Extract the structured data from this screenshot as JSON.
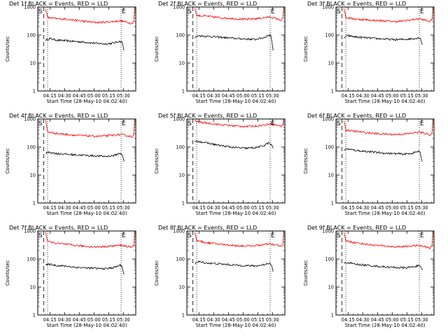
{
  "figure": {
    "xlabel": "Start Time (28-May-10 04:02:40)",
    "ylabel": "Counts/sec",
    "x_ticks": [
      "04:15",
      "04:30",
      "04:45",
      "05:00",
      "05:15",
      "05:30"
    ],
    "y_ticks": [
      "1",
      "10",
      "100",
      "1000"
    ],
    "colors": {
      "events": "#000000",
      "lld": "#ff0000",
      "axes": "#000000"
    }
  },
  "chart_data": [
    {
      "type": "line",
      "title": "Det 1f BLACK = Events, RED = LLD",
      "start_marker": "S",
      "end_marker": "E",
      "xlim_minutes": [
        0,
        100
      ],
      "x_unit": "minutes after 04:02:40",
      "yscale": "log",
      "ylim": [
        1,
        1000
      ],
      "dashed_line_x": 6,
      "dotted_lines_x": [
        10,
        85
      ],
      "series": [
        {
          "name": "Events",
          "color": "#000000",
          "x": [
            8,
            12,
            20,
            30,
            40,
            50,
            60,
            70,
            78,
            83,
            86,
            88
          ],
          "values": [
            65,
            75,
            65,
            62,
            58,
            55,
            50,
            48,
            52,
            60,
            55,
            28
          ]
        },
        {
          "name": "LLD",
          "color": "#ff0000",
          "x": [
            8,
            10,
            20,
            30,
            40,
            50,
            60,
            70,
            80,
            85,
            92,
            96,
            98,
            99
          ],
          "values": [
            900,
            420,
            380,
            370,
            330,
            300,
            280,
            290,
            310,
            320,
            280,
            260,
            320,
            1000
          ]
        }
      ]
    },
    {
      "type": "line",
      "title": "Det 2f BLACK = Events, RED = LLD",
      "start_marker": "S",
      "end_marker": "E",
      "xlim_minutes": [
        0,
        100
      ],
      "x_unit": "minutes after 04:02:40",
      "yscale": "log",
      "ylim": [
        1,
        1000
      ],
      "dashed_line_x": 6,
      "dotted_lines_x": [
        10,
        85
      ],
      "series": [
        {
          "name": "Events",
          "color": "#000000",
          "x": [
            8,
            12,
            20,
            30,
            40,
            50,
            60,
            70,
            78,
            84,
            86,
            88
          ],
          "values": [
            80,
            95,
            90,
            85,
            80,
            75,
            72,
            70,
            80,
            100,
            90,
            28
          ]
        },
        {
          "name": "LLD",
          "color": "#ff0000",
          "x": [
            8,
            10,
            20,
            30,
            40,
            50,
            60,
            70,
            80,
            85,
            92,
            96,
            98,
            99
          ],
          "values": [
            900,
            500,
            470,
            430,
            400,
            380,
            360,
            380,
            420,
            440,
            380,
            330,
            400,
            1000
          ]
        }
      ]
    },
    {
      "type": "line",
      "title": "Det 3f BLACK = Events, RED = LLD",
      "start_marker": "S",
      "end_marker": "E",
      "xlim_minutes": [
        0,
        100
      ],
      "x_unit": "minutes after 04:02:40",
      "yscale": "log",
      "ylim": [
        1,
        1000
      ],
      "dashed_line_x": 6,
      "dotted_lines_x": [
        10,
        85
      ],
      "series": [
        {
          "name": "Events",
          "color": "#000000",
          "x": [
            8,
            12,
            20,
            30,
            40,
            50,
            60,
            70,
            80,
            86,
            88
          ],
          "values": [
            80,
            95,
            85,
            80,
            75,
            72,
            68,
            70,
            75,
            80,
            45
          ]
        },
        {
          "name": "LLD",
          "color": "#ff0000",
          "x": [
            8,
            10,
            20,
            30,
            40,
            50,
            60,
            70,
            80,
            85,
            92,
            96,
            98,
            99
          ],
          "values": [
            900,
            420,
            370,
            350,
            330,
            320,
            300,
            320,
            360,
            380,
            330,
            300,
            360,
            1000
          ]
        }
      ]
    },
    {
      "type": "line",
      "title": "Det 4f BLACK = Events, RED = LLD",
      "start_marker": "S",
      "end_marker": "E",
      "xlim_minutes": [
        0,
        100
      ],
      "x_unit": "minutes after 04:02:40",
      "yscale": "log",
      "ylim": [
        1,
        1000
      ],
      "dashed_line_x": 6,
      "dotted_lines_x": [
        10,
        85
      ],
      "series": [
        {
          "name": "Events",
          "color": "#000000",
          "x": [
            8,
            12,
            20,
            30,
            40,
            50,
            60,
            70,
            78,
            84,
            86,
            88
          ],
          "values": [
            60,
            65,
            58,
            55,
            52,
            50,
            48,
            46,
            50,
            60,
            55,
            30
          ]
        },
        {
          "name": "LLD",
          "color": "#ff0000",
          "x": [
            8,
            10,
            20,
            30,
            40,
            50,
            60,
            70,
            80,
            85,
            92,
            96,
            98,
            99
          ],
          "values": [
            900,
            350,
            300,
            280,
            260,
            250,
            240,
            250,
            270,
            280,
            250,
            230,
            290,
            1000
          ]
        }
      ]
    },
    {
      "type": "line",
      "title": "Det 5f BLACK = Events, RED = LLD",
      "start_marker": "S",
      "end_marker": "E",
      "xlim_minutes": [
        0,
        100
      ],
      "x_unit": "minutes after 04:02:40",
      "yscale": "log",
      "ylim": [
        1,
        1000
      ],
      "dashed_line_x": 6,
      "dotted_lines_x": [
        10,
        85
      ],
      "series": [
        {
          "name": "Events",
          "color": "#000000",
          "x": [
            8,
            12,
            20,
            30,
            40,
            50,
            60,
            70,
            78,
            83,
            86,
            88
          ],
          "values": [
            150,
            160,
            140,
            120,
            105,
            95,
            90,
            95,
            110,
            140,
            120,
            90
          ]
        },
        {
          "name": "LLD",
          "color": "#ff0000",
          "x": [
            8,
            10,
            20,
            30,
            40,
            50,
            60,
            70,
            80,
            85,
            92,
            96,
            98,
            99
          ],
          "values": [
            900,
            800,
            720,
            650,
            600,
            560,
            540,
            560,
            620,
            680,
            600,
            550,
            650,
            1000
          ]
        }
      ]
    },
    {
      "type": "line",
      "title": "Det 6f BLACK = Events, RED = LLD",
      "start_marker": "S",
      "end_marker": "E",
      "xlim_minutes": [
        0,
        100
      ],
      "x_unit": "minutes after 04:02:40",
      "yscale": "log",
      "ylim": [
        1,
        1000
      ],
      "dashed_line_x": 6,
      "dotted_lines_x": [
        10,
        85
      ],
      "series": [
        {
          "name": "Events",
          "color": "#000000",
          "x": [
            8,
            12,
            20,
            30,
            40,
            50,
            60,
            70,
            78,
            84,
            86,
            88
          ],
          "values": [
            80,
            85,
            75,
            70,
            65,
            60,
            58,
            56,
            60,
            70,
            60,
            30
          ]
        },
        {
          "name": "LLD",
          "color": "#ff0000",
          "x": [
            8,
            10,
            20,
            30,
            40,
            50,
            60,
            70,
            80,
            85,
            92,
            96,
            98,
            99
          ],
          "values": [
            900,
            400,
            360,
            330,
            300,
            290,
            280,
            290,
            320,
            340,
            300,
            270,
            330,
            1000
          ]
        }
      ]
    },
    {
      "type": "line",
      "title": "Det 7f BLACK = Events, RED = LLD",
      "start_marker": "S",
      "end_marker": "E",
      "xlim_minutes": [
        0,
        100
      ],
      "x_unit": "minutes after 04:02:40",
      "yscale": "log",
      "ylim": [
        1,
        1000
      ],
      "dashed_line_x": 6,
      "dotted_lines_x": [
        10,
        85
      ],
      "series": [
        {
          "name": "Events",
          "color": "#000000",
          "x": [
            8,
            12,
            20,
            30,
            40,
            50,
            60,
            70,
            78,
            84,
            86,
            88
          ],
          "values": [
            60,
            65,
            58,
            55,
            50,
            48,
            46,
            45,
            50,
            60,
            55,
            28
          ]
        },
        {
          "name": "LLD",
          "color": "#ff0000",
          "x": [
            8,
            10,
            20,
            30,
            40,
            50,
            60,
            70,
            80,
            85,
            92,
            96,
            98,
            99
          ],
          "values": [
            900,
            420,
            360,
            330,
            300,
            280,
            270,
            280,
            300,
            310,
            280,
            260,
            310,
            1000
          ]
        }
      ]
    },
    {
      "type": "line",
      "title": "Det 8f BLACK = Events, RED = LLD",
      "start_marker": "S",
      "end_marker": "E",
      "xlim_minutes": [
        0,
        100
      ],
      "x_unit": "minutes after 04:02:40",
      "yscale": "log",
      "ylim": [
        1,
        1000
      ],
      "dashed_line_x": 6,
      "dotted_lines_x": [
        10,
        85
      ],
      "series": [
        {
          "name": "Events",
          "color": "#000000",
          "x": [
            8,
            12,
            20,
            30,
            40,
            50,
            60,
            70,
            78,
            84,
            86,
            88
          ],
          "values": [
            70,
            80,
            72,
            68,
            64,
            60,
            58,
            56,
            62,
            72,
            65,
            35
          ]
        },
        {
          "name": "LLD",
          "color": "#ff0000",
          "x": [
            8,
            10,
            20,
            30,
            40,
            50,
            60,
            70,
            80,
            85,
            92,
            96,
            98,
            99
          ],
          "values": [
            900,
            450,
            380,
            350,
            320,
            300,
            290,
            300,
            330,
            340,
            310,
            280,
            340,
            1000
          ]
        }
      ]
    },
    {
      "type": "line",
      "title": "Det 9f BLACK = Events, RED = LLD",
      "start_marker": "S",
      "end_marker": "E",
      "xlim_minutes": [
        0,
        100
      ],
      "x_unit": "minutes after 04:02:40",
      "yscale": "log",
      "ylim": [
        1,
        1000
      ],
      "dashed_line_x": 6,
      "dotted_lines_x": [
        10,
        85
      ],
      "series": [
        {
          "name": "Events",
          "color": "#000000",
          "x": [
            8,
            12,
            20,
            30,
            40,
            50,
            60,
            70,
            78,
            84,
            86,
            88
          ],
          "values": [
            70,
            75,
            65,
            60,
            56,
            52,
            50,
            48,
            52,
            58,
            52,
            40
          ]
        },
        {
          "name": "LLD",
          "color": "#ff0000",
          "x": [
            8,
            10,
            20,
            30,
            40,
            50,
            60,
            70,
            80,
            85,
            92,
            96,
            98,
            99
          ],
          "values": [
            900,
            450,
            380,
            340,
            310,
            290,
            270,
            280,
            300,
            300,
            270,
            240,
            300,
            1000
          ]
        }
      ]
    }
  ]
}
